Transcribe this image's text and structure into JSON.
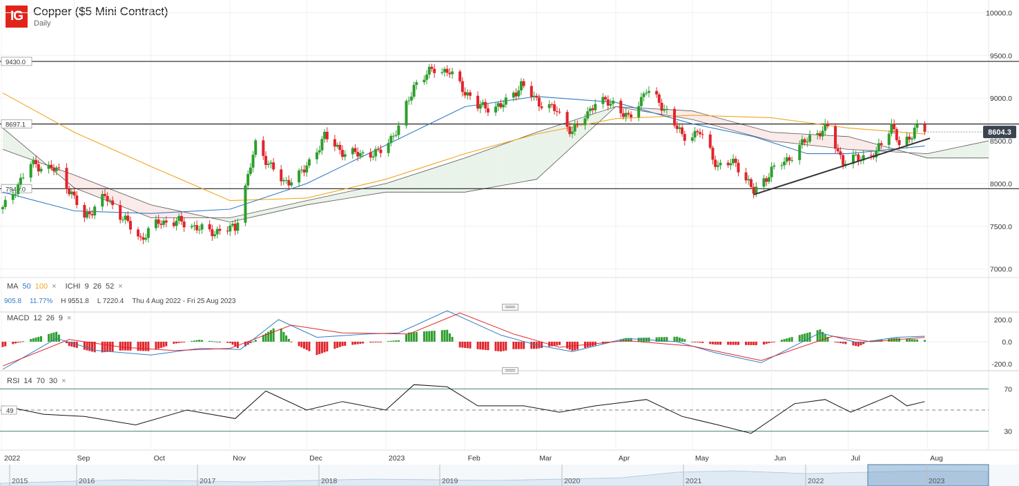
{
  "header": {
    "logo": "IG",
    "title": "Copper ($5 Mini Contract)",
    "subtitle": "Daily"
  },
  "indicators": {
    "ma": {
      "label": "MA",
      "p1": "50",
      "p2": "100"
    },
    "ichimoku": {
      "label": "ICHI",
      "p1": "9",
      "p2": "26",
      "p3": "52"
    },
    "macd": {
      "label": "MACD",
      "p1": "12",
      "p2": "26",
      "p3": "9"
    },
    "rsi": {
      "label": "RSI",
      "p1": "14",
      "p2": "70",
      "p3": "30"
    },
    "close_icon": "×"
  },
  "stats": {
    "v1": "905.8",
    "v2": "11.77%",
    "high": "H 9551.8",
    "low": "L 7220.4",
    "range": "Thu 4 Aug 2022 - Fri 25 Aug 2023"
  },
  "colors": {
    "up": "#2e9e2e",
    "down": "#e0252b",
    "ma50": "#2f7dc4",
    "ma100": "#f0a51e",
    "cloud_bull": "#eaf3ea",
    "cloud_bear": "#fbeaea"
  },
  "chart_data": {
    "type": "candlestick",
    "price_axis": {
      "ticks": [
        "10000.0",
        "9500.0",
        "9000.0",
        "8500.0",
        "8000.0",
        "7500.0",
        "7000.0"
      ],
      "ylim": [
        6900,
        10100
      ]
    },
    "horizontal_levels": [
      {
        "value": 9430.0,
        "label": "9430.0"
      },
      {
        "value": 8697.1,
        "label": "8697.1"
      },
      {
        "value": 7940.0,
        "label": "7940.0"
      }
    ],
    "current_price": {
      "value": 8604.3,
      "label": "8604.3"
    },
    "trendline": {
      "start": [
        "2023-05-25",
        7870
      ],
      "end": [
        "2023-08-02",
        8530
      ]
    },
    "x_axis": {
      "labels": [
        "2022",
        "Sep",
        "Oct",
        "Nov",
        "Dec",
        "2023",
        "Feb",
        "Mar",
        "Apr",
        "May",
        "Jun",
        "Jul",
        "Aug"
      ],
      "range": [
        "2022-08-04",
        "2023-08-25"
      ]
    },
    "price_keypoints": [
      [
        "2022-08-04",
        7700
      ],
      [
        "2022-08-15",
        8230
      ],
      [
        "2022-08-26",
        8150
      ],
      [
        "2022-09-05",
        7600
      ],
      [
        "2022-09-13",
        7850
      ],
      [
        "2022-09-27",
        7350
      ],
      [
        "2022-10-04",
        7550
      ],
      [
        "2022-10-13",
        7550
      ],
      [
        "2022-10-24",
        7430
      ],
      [
        "2022-11-03",
        7480
      ],
      [
        "2022-11-11",
        8450
      ],
      [
        "2022-11-22",
        8000
      ],
      [
        "2022-11-30",
        8150
      ],
      [
        "2022-12-08",
        8550
      ],
      [
        "2022-12-16",
        8350
      ],
      [
        "2022-12-29",
        8350
      ],
      [
        "2023-01-06",
        8650
      ],
      [
        "2023-01-12",
        9150
      ],
      [
        "2023-01-20",
        9350
      ],
      [
        "2023-01-26",
        9300
      ],
      [
        "2023-02-06",
        8900
      ],
      [
        "2023-02-15",
        8900
      ],
      [
        "2023-02-23",
        9150
      ],
      [
        "2023-03-02",
        8950
      ],
      [
        "2023-03-09",
        8850
      ],
      [
        "2023-03-15",
        8600
      ],
      [
        "2023-03-24",
        8950
      ],
      [
        "2023-03-31",
        8950
      ],
      [
        "2023-04-06",
        8750
      ],
      [
        "2023-04-13",
        9100
      ],
      [
        "2023-04-21",
        8850
      ],
      [
        "2023-04-27",
        8550
      ],
      [
        "2023-05-04",
        8600
      ],
      [
        "2023-05-11",
        8200
      ],
      [
        "2023-05-18",
        8250
      ],
      [
        "2023-05-25",
        7900
      ],
      [
        "2023-06-01",
        8150
      ],
      [
        "2023-06-08",
        8300
      ],
      [
        "2023-06-16",
        8550
      ],
      [
        "2023-06-23",
        8650
      ],
      [
        "2023-06-29",
        8250
      ],
      [
        "2023-07-05",
        8300
      ],
      [
        "2023-07-12",
        8350
      ],
      [
        "2023-07-18",
        8700
      ],
      [
        "2023-07-21",
        8450
      ],
      [
        "2023-07-25",
        8500
      ],
      [
        "2023-07-27",
        8680
      ],
      [
        "2023-07-31",
        8604.3
      ]
    ],
    "ma50_keypoints": [
      [
        "2022-08-04",
        7900
      ],
      [
        "2022-09-01",
        7680
      ],
      [
        "2022-10-01",
        7650
      ],
      [
        "2022-11-01",
        7700
      ],
      [
        "2022-12-01",
        8000
      ],
      [
        "2023-01-01",
        8450
      ],
      [
        "2023-02-01",
        8900
      ],
      [
        "2023-03-01",
        9020
      ],
      [
        "2023-04-01",
        8950
      ],
      [
        "2023-05-01",
        8700
      ],
      [
        "2023-05-25",
        8550
      ],
      [
        "2023-06-15",
        8350
      ],
      [
        "2023-07-01",
        8350
      ],
      [
        "2023-07-31",
        8440
      ]
    ],
    "ma100_keypoints": [
      [
        "2022-08-04",
        9060
      ],
      [
        "2022-09-01",
        8600
      ],
      [
        "2022-10-01",
        8200
      ],
      [
        "2022-11-01",
        7800
      ],
      [
        "2022-12-01",
        7830
      ],
      [
        "2023-01-01",
        8050
      ],
      [
        "2023-02-01",
        8350
      ],
      [
        "2023-03-01",
        8580
      ],
      [
        "2023-04-01",
        8760
      ],
      [
        "2023-05-01",
        8800
      ],
      [
        "2023-06-01",
        8770
      ],
      [
        "2023-07-01",
        8650
      ],
      [
        "2023-07-31",
        8580
      ]
    ],
    "cloud_span_a": [
      [
        "2022-08-04",
        8650
      ],
      [
        "2022-09-01",
        7950
      ],
      [
        "2022-10-01",
        7600
      ],
      [
        "2022-11-01",
        7600
      ],
      [
        "2022-12-01",
        7800
      ],
      [
        "2023-01-01",
        8000
      ],
      [
        "2023-02-01",
        8300
      ],
      [
        "2023-03-01",
        8600
      ],
      [
        "2023-04-01",
        8900
      ],
      [
        "2023-05-01",
        8750
      ],
      [
        "2023-06-01",
        8500
      ],
      [
        "2023-07-01",
        8400
      ],
      [
        "2023-08-01",
        8350
      ],
      [
        "2023-08-25",
        8500
      ]
    ],
    "cloud_span_b": [
      [
        "2022-08-04",
        8400
      ],
      [
        "2022-09-01",
        8100
      ],
      [
        "2022-10-01",
        7750
      ],
      [
        "2022-11-01",
        7550
      ],
      [
        "2022-12-01",
        7750
      ],
      [
        "2023-01-01",
        7900
      ],
      [
        "2023-02-01",
        7900
      ],
      [
        "2023-03-01",
        8050
      ],
      [
        "2023-04-01",
        8900
      ],
      [
        "2023-05-01",
        8850
      ],
      [
        "2023-06-01",
        8600
      ],
      [
        "2023-07-01",
        8550
      ],
      [
        "2023-08-01",
        8300
      ],
      [
        "2023-08-25",
        8300
      ]
    ],
    "macd": {
      "ticks": [
        "200.0",
        "0.0",
        "-200.0"
      ],
      "ylim": [
        -250,
        250
      ],
      "macd_keypoints": [
        [
          "2022-08-04",
          -250
        ],
        [
          "2022-08-25",
          30
        ],
        [
          "2022-09-10",
          -80
        ],
        [
          "2022-10-01",
          -120
        ],
        [
          "2022-10-20",
          -60
        ],
        [
          "2022-11-05",
          -70
        ],
        [
          "2022-11-20",
          200
        ],
        [
          "2022-12-05",
          40
        ],
        [
          "2022-12-25",
          70
        ],
        [
          "2023-01-06",
          80
        ],
        [
          "2023-01-25",
          280
        ],
        [
          "2023-02-15",
          60
        ],
        [
          "2023-03-01",
          -30
        ],
        [
          "2023-03-15",
          -90
        ],
        [
          "2023-04-05",
          30
        ],
        [
          "2023-04-25",
          0
        ],
        [
          "2023-05-10",
          -100
        ],
        [
          "2023-05-28",
          -190
        ],
        [
          "2023-06-20",
          80
        ],
        [
          "2023-07-05",
          -10
        ],
        [
          "2023-07-20",
          40
        ],
        [
          "2023-07-31",
          50
        ]
      ],
      "signal_keypoints": [
        [
          "2022-08-04",
          -220
        ],
        [
          "2022-08-30",
          20
        ],
        [
          "2022-09-20",
          -50
        ],
        [
          "2022-10-10",
          -80
        ],
        [
          "2022-11-01",
          -60
        ],
        [
          "2022-11-25",
          150
        ],
        [
          "2022-12-15",
          80
        ],
        [
          "2023-01-10",
          70
        ],
        [
          "2023-01-30",
          260
        ],
        [
          "2023-02-20",
          70
        ],
        [
          "2023-03-10",
          -50
        ],
        [
          "2023-04-05",
          10
        ],
        [
          "2023-05-01",
          -40
        ],
        [
          "2023-05-28",
          -170
        ],
        [
          "2023-06-25",
          50
        ],
        [
          "2023-07-10",
          0
        ],
        [
          "2023-07-31",
          40
        ]
      ]
    },
    "rsi": {
      "ticks": [
        "70",
        "30"
      ],
      "ylim": [
        20,
        80
      ],
      "mid_label": "49",
      "keypoints": [
        [
          "2022-08-04",
          52
        ],
        [
          "2022-08-20",
          48
        ],
        [
          "2022-09-05",
          42
        ],
        [
          "2022-09-25",
          38
        ],
        [
          "2022-10-15",
          48
        ],
        [
          "2022-11-03",
          44
        ],
        [
          "2022-11-15",
          66
        ],
        [
          "2022-12-01",
          52
        ],
        [
          "2022-12-15",
          56
        ],
        [
          "2023-01-01",
          52
        ],
        [
          "2023-01-12",
          72
        ],
        [
          "2023-01-25",
          74
        ],
        [
          "2023-02-06",
          52
        ],
        [
          "2023-02-24",
          56
        ],
        [
          "2023-03-10",
          46
        ],
        [
          "2023-03-24",
          56
        ],
        [
          "2023-04-13",
          58
        ],
        [
          "2023-04-27",
          46
        ],
        [
          "2023-05-11",
          34
        ],
        [
          "2023-05-24",
          30
        ],
        [
          "2023-06-10",
          54
        ],
        [
          "2023-06-22",
          62
        ],
        [
          "2023-07-02",
          46
        ],
        [
          "2023-07-18",
          66
        ],
        [
          "2023-07-24",
          52
        ],
        [
          "2023-07-31",
          60
        ]
      ]
    },
    "navigator": {
      "labels": [
        "2015",
        "2016",
        "2017",
        "2018",
        "2019",
        "2020",
        "2021",
        "2022",
        "2023"
      ]
    }
  }
}
